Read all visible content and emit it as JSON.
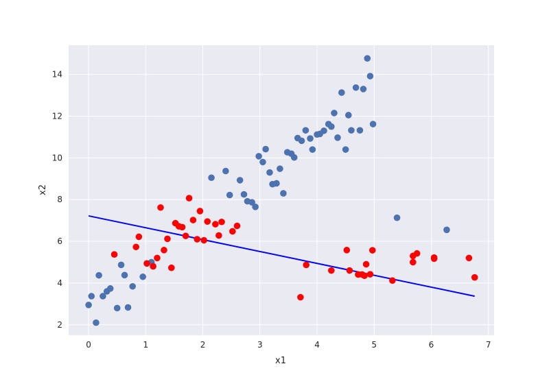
{
  "chart_data": {
    "type": "scatter",
    "xlabel": "x1",
    "ylabel": "x2",
    "xlim": [
      -0.35,
      7.1
    ],
    "ylim": [
      1.5,
      15.4
    ],
    "xticks": [
      0,
      1,
      2,
      3,
      4,
      5,
      6,
      7
    ],
    "yticks": [
      2,
      4,
      6,
      8,
      10,
      12,
      14
    ],
    "x_tick_labels": [
      "0",
      "1",
      "2",
      "3",
      "4",
      "5",
      "6",
      "7"
    ],
    "y_tick_labels": [
      "2",
      "4",
      "6",
      "8",
      "10",
      "12",
      "14"
    ],
    "grid": true,
    "background": "#eaeaf2",
    "colors": {
      "blue_points": "#4c72b0",
      "red_points": "#ff0000",
      "line": "#0000ff"
    },
    "series": [
      {
        "color": "#4c72b0",
        "points": [
          [
            0.0,
            2.95
          ],
          [
            0.05,
            3.37
          ],
          [
            0.13,
            2.1
          ],
          [
            0.18,
            4.37
          ],
          [
            0.25,
            3.37
          ],
          [
            0.32,
            3.6
          ],
          [
            0.38,
            3.74
          ],
          [
            0.5,
            2.8
          ],
          [
            0.57,
            4.87
          ],
          [
            0.63,
            4.38
          ],
          [
            0.69,
            2.83
          ],
          [
            0.77,
            3.84
          ],
          [
            0.95,
            4.3
          ],
          [
            1.1,
            5.0
          ],
          [
            2.15,
            9.05
          ],
          [
            2.4,
            9.37
          ],
          [
            2.47,
            8.22
          ],
          [
            2.65,
            8.93
          ],
          [
            2.72,
            8.25
          ],
          [
            2.78,
            7.92
          ],
          [
            2.86,
            7.87
          ],
          [
            2.92,
            7.65
          ],
          [
            2.98,
            10.08
          ],
          [
            3.05,
            9.8
          ],
          [
            3.1,
            10.42
          ],
          [
            3.17,
            9.3
          ],
          [
            3.22,
            8.74
          ],
          [
            3.29,
            8.78
          ],
          [
            3.35,
            9.48
          ],
          [
            3.41,
            8.3
          ],
          [
            3.48,
            10.27
          ],
          [
            3.55,
            10.2
          ],
          [
            3.6,
            10.02
          ],
          [
            3.66,
            10.95
          ],
          [
            3.73,
            10.82
          ],
          [
            3.8,
            11.32
          ],
          [
            3.88,
            10.93
          ],
          [
            3.92,
            10.4
          ],
          [
            4.0,
            11.12
          ],
          [
            4.05,
            11.15
          ],
          [
            4.12,
            11.3
          ],
          [
            4.2,
            11.62
          ],
          [
            4.25,
            11.5
          ],
          [
            4.3,
            12.15
          ],
          [
            4.36,
            10.97
          ],
          [
            4.43,
            13.13
          ],
          [
            4.5,
            10.4
          ],
          [
            4.55,
            12.05
          ],
          [
            4.6,
            11.32
          ],
          [
            4.68,
            13.37
          ],
          [
            4.75,
            11.32
          ],
          [
            4.81,
            13.3
          ],
          [
            4.88,
            14.77
          ],
          [
            4.93,
            13.92
          ],
          [
            4.98,
            11.62
          ],
          [
            5.4,
            7.13
          ],
          [
            6.27,
            6.55
          ]
        ]
      },
      {
        "color": "#ff0000",
        "points": [
          [
            0.45,
            5.37
          ],
          [
            0.83,
            5.73
          ],
          [
            0.88,
            6.22
          ],
          [
            1.02,
            4.94
          ],
          [
            1.13,
            4.8
          ],
          [
            1.2,
            5.2
          ],
          [
            1.26,
            7.62
          ],
          [
            1.32,
            5.58
          ],
          [
            1.38,
            6.12
          ],
          [
            1.45,
            4.73
          ],
          [
            1.52,
            6.87
          ],
          [
            1.58,
            6.72
          ],
          [
            1.64,
            6.68
          ],
          [
            1.7,
            6.26
          ],
          [
            1.76,
            8.07
          ],
          [
            1.83,
            7.02
          ],
          [
            1.9,
            6.1
          ],
          [
            1.95,
            7.45
          ],
          [
            2.02,
            6.05
          ],
          [
            2.08,
            6.95
          ],
          [
            2.22,
            6.82
          ],
          [
            2.28,
            6.28
          ],
          [
            2.33,
            6.93
          ],
          [
            2.52,
            6.48
          ],
          [
            2.6,
            6.74
          ],
          [
            3.71,
            3.32
          ],
          [
            3.81,
            4.87
          ],
          [
            4.25,
            4.6
          ],
          [
            4.52,
            5.58
          ],
          [
            4.57,
            4.6
          ],
          [
            4.72,
            4.41
          ],
          [
            4.79,
            4.41
          ],
          [
            4.83,
            4.35
          ],
          [
            4.86,
            4.9
          ],
          [
            4.93,
            4.42
          ],
          [
            4.97,
            5.57
          ],
          [
            5.32,
            4.12
          ],
          [
            5.68,
            5.3
          ],
          [
            5.68,
            5.0
          ],
          [
            5.75,
            5.42
          ],
          [
            6.05,
            5.22
          ],
          [
            6.05,
            5.17
          ],
          [
            6.66,
            5.2
          ],
          [
            6.76,
            4.27
          ]
        ]
      }
    ],
    "line": {
      "color": "#0000ff",
      "x": [
        0,
        6.76
      ],
      "y": [
        7.22,
        3.37
      ]
    }
  }
}
